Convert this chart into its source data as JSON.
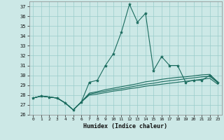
{
  "xlabel": "Humidex (Indice chaleur)",
  "bg_color": "#cce8e6",
  "grid_color": "#99ccca",
  "line_color": "#1a6b5e",
  "xlim": [
    -0.5,
    23.5
  ],
  "ylim": [
    26,
    37.5
  ],
  "yticks": [
    26,
    27,
    28,
    29,
    30,
    31,
    32,
    33,
    34,
    35,
    36,
    37
  ],
  "xticks": [
    0,
    1,
    2,
    3,
    4,
    5,
    6,
    7,
    8,
    9,
    10,
    11,
    12,
    13,
    14,
    15,
    16,
    17,
    18,
    19,
    20,
    21,
    22,
    23
  ],
  "series": [
    [
      27.7,
      27.9,
      27.8,
      27.7,
      27.2,
      26.5,
      27.3,
      29.3,
      29.5,
      31.0,
      32.2,
      34.4,
      37.2,
      35.4,
      36.3,
      30.5,
      31.9,
      31.0,
      31.0,
      29.3,
      29.5,
      29.5,
      30.0,
      29.3
    ],
    [
      27.7,
      27.9,
      27.8,
      27.7,
      27.2,
      26.5,
      27.3,
      28.2,
      28.35,
      28.55,
      28.7,
      28.85,
      29.0,
      29.15,
      29.35,
      29.45,
      29.6,
      29.7,
      29.8,
      29.85,
      29.95,
      30.05,
      30.1,
      29.35
    ],
    [
      27.7,
      27.9,
      27.8,
      27.7,
      27.2,
      26.5,
      27.3,
      28.1,
      28.25,
      28.4,
      28.55,
      28.65,
      28.8,
      28.95,
      29.1,
      29.2,
      29.35,
      29.45,
      29.55,
      29.65,
      29.75,
      29.85,
      29.9,
      29.25
    ],
    [
      27.7,
      27.9,
      27.8,
      27.7,
      27.2,
      26.5,
      27.3,
      28.0,
      28.1,
      28.25,
      28.4,
      28.5,
      28.65,
      28.75,
      28.9,
      29.0,
      29.1,
      29.2,
      29.3,
      29.4,
      29.5,
      29.6,
      29.7,
      29.1
    ]
  ]
}
